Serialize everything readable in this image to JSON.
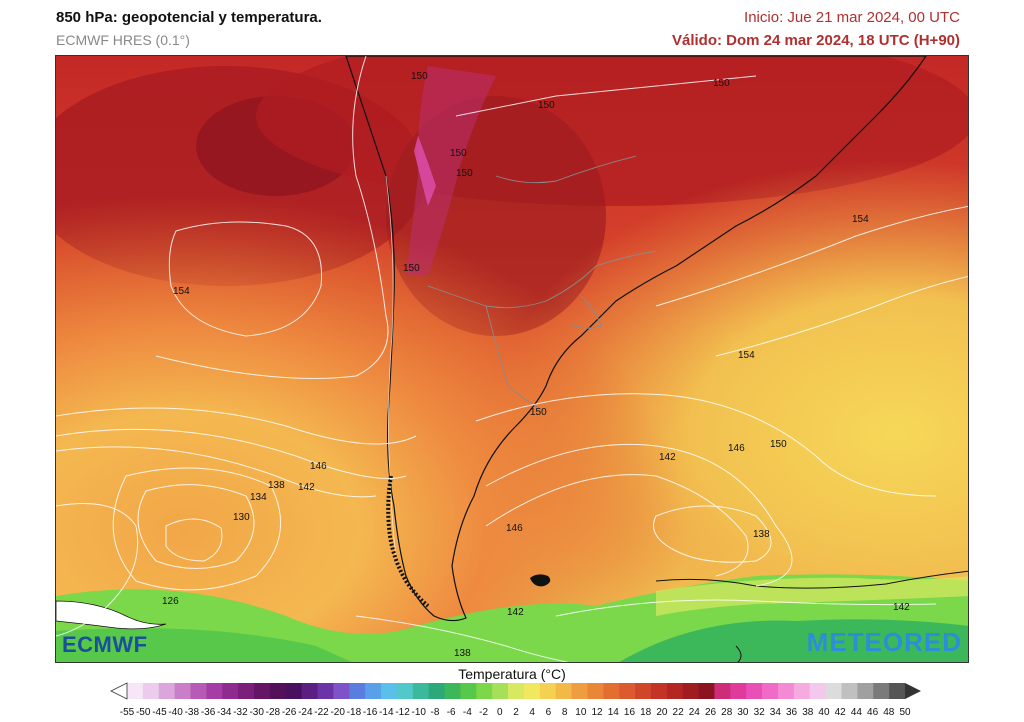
{
  "header": {
    "title": "850 hPa: geopotencial y temperatura.",
    "model": "ECMWF HRES (0.1°)",
    "init": "Inicio: Jue 21 mar 2024, 00 UTC",
    "valid": "Válido: Dom 24 mar 2024, 18 UTC (H+90)"
  },
  "map": {
    "contour_labels": [
      {
        "text": "150",
        "kind": "geopotential"
      },
      {
        "text": "150",
        "kind": "geopotential"
      },
      {
        "text": "150",
        "kind": "geopotential"
      },
      {
        "text": "150",
        "kind": "geopotential"
      },
      {
        "text": "150",
        "kind": "geopotential"
      },
      {
        "text": "150",
        "kind": "geopotential"
      },
      {
        "text": "154",
        "kind": "geopotential"
      },
      {
        "text": "154",
        "kind": "geopotential"
      },
      {
        "text": "154",
        "kind": "geopotential"
      },
      {
        "text": "150",
        "kind": "geopotential"
      },
      {
        "text": "150",
        "kind": "geopotential"
      },
      {
        "text": "146",
        "kind": "geopotential"
      },
      {
        "text": "146",
        "kind": "geopotential"
      },
      {
        "text": "146",
        "kind": "geopotential"
      },
      {
        "text": "142",
        "kind": "geopotential"
      },
      {
        "text": "142",
        "kind": "geopotential"
      },
      {
        "text": "142",
        "kind": "geopotential"
      },
      {
        "text": "142",
        "kind": "geopotential"
      },
      {
        "text": "138",
        "kind": "geopotential"
      },
      {
        "text": "138",
        "kind": "geopotential"
      },
      {
        "text": "138",
        "kind": "geopotential"
      },
      {
        "text": "134",
        "kind": "geopotential"
      },
      {
        "text": "130",
        "kind": "geopotential"
      },
      {
        "text": "126",
        "kind": "geopotential"
      }
    ]
  },
  "logos": {
    "left": "ECMWF",
    "right": "METEORED"
  },
  "colorbar": {
    "title": "Temperatura (°C)",
    "labels": [
      "-55",
      "-50",
      "-45",
      "-40",
      "-38",
      "-36",
      "-34",
      "-32",
      "-30",
      "-28",
      "-26",
      "-24",
      "-22",
      "-20",
      "-18",
      "-16",
      "-14",
      "-12",
      "-10",
      "-8",
      "-6",
      "-4",
      "-2",
      "0",
      "2",
      "4",
      "6",
      "8",
      "10",
      "12",
      "14",
      "16",
      "18",
      "20",
      "22",
      "24",
      "26",
      "28",
      "30",
      "32",
      "34",
      "36",
      "38",
      "40",
      "42",
      "44",
      "46",
      "48",
      "50"
    ],
    "colors": [
      "#f7e6f7",
      "#eccbec",
      "#dba6db",
      "#c97ec9",
      "#b85ab8",
      "#a63ca6",
      "#8f2a8f",
      "#7a1f7a",
      "#651565",
      "#55105a",
      "#4a1060",
      "#5a1f80",
      "#6a34a8",
      "#7e52c8",
      "#5a7ee0",
      "#5aa0e8",
      "#5ac0e8",
      "#52c8c8",
      "#3cb89a",
      "#2ea878",
      "#3cb85a",
      "#58c84a",
      "#7ad84a",
      "#a6e05a",
      "#d8e860",
      "#f2e860",
      "#f6d050",
      "#f2b848",
      "#ee9e40",
      "#ea8638",
      "#e46e32",
      "#dc5a2e",
      "#d0462a",
      "#c43426",
      "#b42622",
      "#a01c20",
      "#8c1420",
      "#cc2c78",
      "#e03a9c",
      "#e850b8",
      "#f06ac8",
      "#f48ad4",
      "#f6aae0",
      "#f4c8ec",
      "#dcdcdc",
      "#c0c0c0",
      "#a0a0a0",
      "#7a7a7a",
      "#555555"
    ]
  }
}
